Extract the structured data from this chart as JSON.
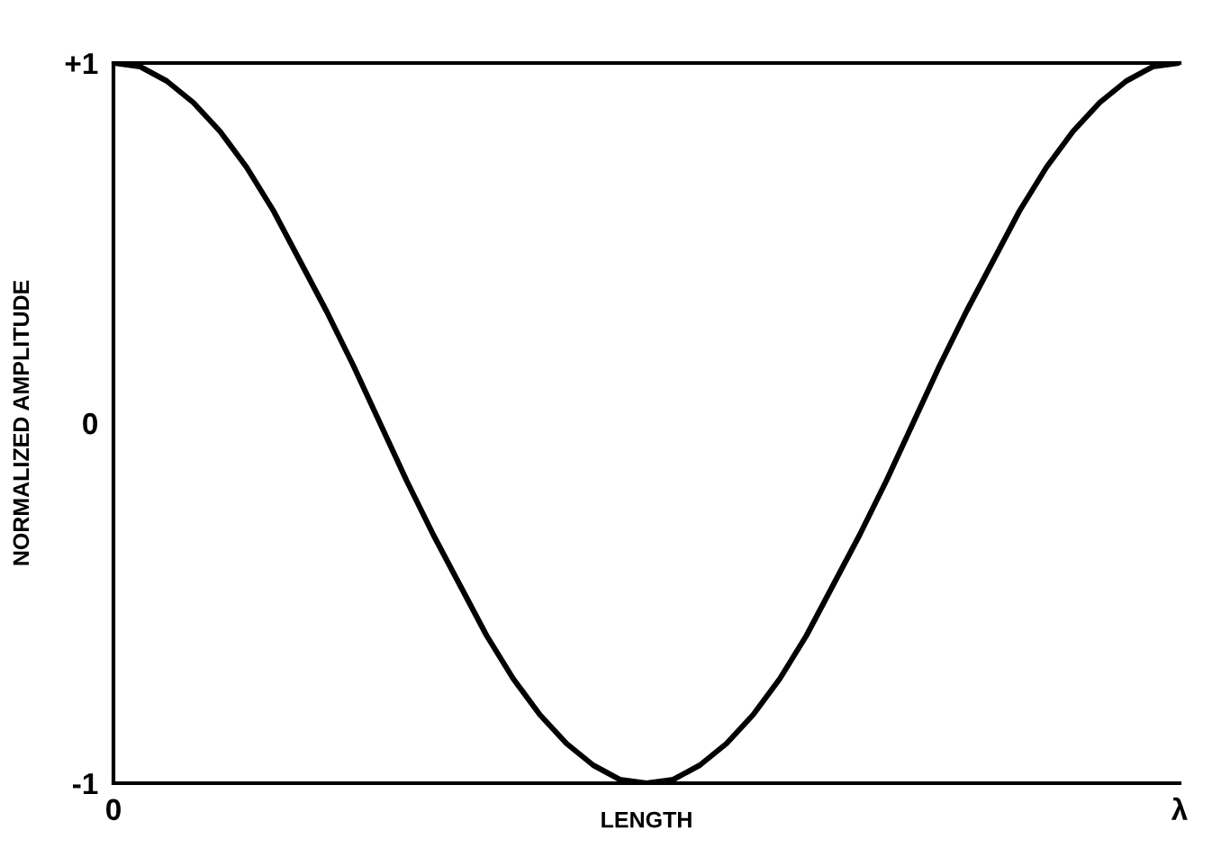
{
  "chart_data": {
    "type": "line",
    "xlabel": "LENGTH",
    "ylabel": "NORMALIZED AMPLITUDE",
    "categories": [
      "0",
      null,
      null,
      null,
      null,
      null,
      null,
      null,
      null,
      null,
      null,
      null,
      null,
      null,
      null,
      null,
      null,
      null,
      null,
      null,
      null,
      null,
      null,
      null,
      null,
      null,
      null,
      null,
      null,
      null,
      null,
      null,
      null,
      null,
      null,
      null,
      null,
      null,
      null,
      null,
      "λ"
    ],
    "series": [
      {
        "color": "#000000",
        "values": [
          1,
          0.99,
          0.95,
          0.89,
          0.81,
          0.71,
          0.59,
          0.45,
          0.31,
          0.16,
          0,
          -0.16,
          -0.31,
          -0.45,
          -0.59,
          -0.71,
          -0.81,
          -0.89,
          -0.95,
          -0.99,
          -1,
          -0.99,
          -0.95,
          -0.89,
          -0.81,
          -0.71,
          -0.59,
          -0.45,
          -0.31,
          -0.16,
          0,
          0.16,
          0.31,
          0.45,
          0.59,
          0.71,
          0.81,
          0.89,
          0.95,
          0.99,
          1
        ]
      }
    ],
    "ylim": [
      -1,
      1
    ],
    "yticks": [
      {
        "value": 1,
        "label": "+1"
      },
      0,
      -1
    ],
    "grid": false,
    "legend": false,
    "marker": "none",
    "line_style": "solid"
  }
}
